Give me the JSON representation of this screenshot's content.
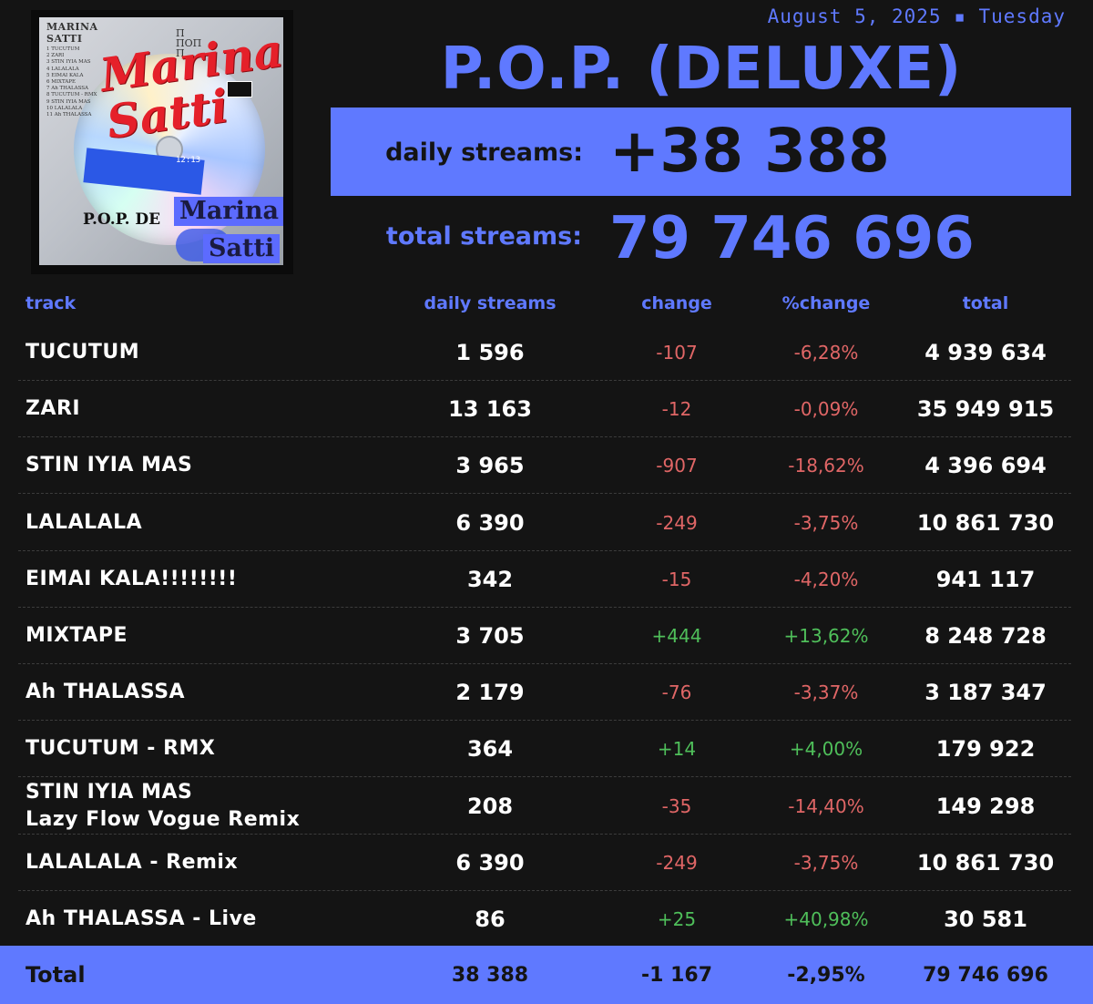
{
  "cover": {
    "artist_top": "MARINA SATTI",
    "script_text": "Marina Satti",
    "greek": "Π ΠΟΠ Π",
    "pop_text": "P.O.P. DE",
    "name_line1": "Marina",
    "name_line2": "Satti",
    "time": "12:13",
    "tracklist": [
      "1 TUCUTUM",
      "2 ZARI",
      "3 STIN IYIA MAS",
      "4 LALALALA",
      "5 EIMAI KALA",
      "6 MIXTAPE",
      "7 Ah THALASSA",
      "8 TUCUTUM - RMX",
      "9 STIN IYIA MAS",
      "10 LALALALA",
      "11 Ah THALASSA"
    ]
  },
  "header": {
    "date": "August 5, 2025  ▪ Tuesday",
    "album_title": "P.O.P. (DELUXE)",
    "daily_label": "daily streams:",
    "daily_value": "+38 388",
    "total_label": "total streams:",
    "total_value": "79 746 696"
  },
  "table": {
    "headers": {
      "track": "track",
      "daily": "daily streams",
      "change": "change",
      "pct": "%change",
      "total": "total"
    },
    "rows": [
      {
        "track": "TUCUTUM",
        "daily": "1 596",
        "change": "-107",
        "pct": "-6,28%",
        "total": "4 939 634",
        "trend": "neg"
      },
      {
        "track": "ZARI",
        "daily": "13 163",
        "change": "-12",
        "pct": "-0,09%",
        "total": "35 949 915",
        "trend": "neg"
      },
      {
        "track": "STIN IYIA MAS",
        "daily": "3 965",
        "change": "-907",
        "pct": "-18,62%",
        "total": "4 396 694",
        "trend": "neg"
      },
      {
        "track": "LALALALA",
        "daily": "6 390",
        "change": "-249",
        "pct": "-3,75%",
        "total": "10 861 730",
        "trend": "neg"
      },
      {
        "track": "EIMAI KALA!!!!!!!!",
        "daily": "342",
        "change": "-15",
        "pct": "-4,20%",
        "total": "941 117",
        "trend": "neg"
      },
      {
        "track": "MIXTAPE",
        "daily": "3 705",
        "change": "+444",
        "pct": "+13,62%",
        "total": "8 248 728",
        "trend": "pos"
      },
      {
        "track": "Ah THALASSA",
        "daily": "2 179",
        "change": "-76",
        "pct": "-3,37%",
        "total": "3 187 347",
        "trend": "neg"
      },
      {
        "track": "TUCUTUM - RMX",
        "daily": "364",
        "change": "+14",
        "pct": "+4,00%",
        "total": "179 922",
        "trend": "pos"
      },
      {
        "track": "STIN IYIA MAS\nLazy Flow Vogue Remix",
        "daily": "208",
        "change": "-35",
        "pct": "-14,40%",
        "total": "149 298",
        "trend": "neg"
      },
      {
        "track": "LALALALA - Remix",
        "daily": "6 390",
        "change": "-249",
        "pct": "-3,75%",
        "total": "10 861 730",
        "trend": "neg"
      },
      {
        "track": "Ah THALASSA - Live",
        "daily": "86",
        "change": "+25",
        "pct": "+40,98%",
        "total": "30 581",
        "trend": "pos"
      }
    ],
    "total": {
      "track": "Total",
      "daily": "38 388",
      "change": "-1 167",
      "pct": "-2,95%",
      "total": "79 746 696"
    }
  },
  "colors": {
    "accent": "#5f79ff",
    "background": "#141414",
    "negative": "#e06666",
    "positive": "#4fbf5a"
  }
}
